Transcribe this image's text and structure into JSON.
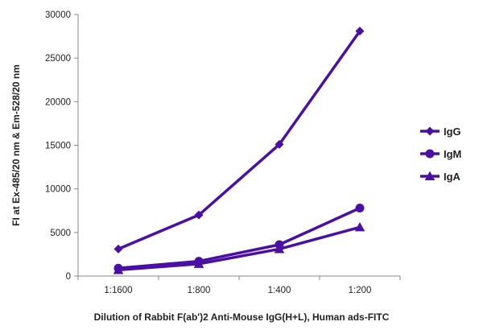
{
  "chart_data": {
    "type": "line",
    "categories": [
      "1:1600",
      "1:800",
      "1:400",
      "1:200"
    ],
    "series": [
      {
        "name": "IgG",
        "marker": "diamond",
        "color": "#4a0fa3",
        "values": [
          3100,
          7000,
          15100,
          28100
        ]
      },
      {
        "name": "IgM",
        "marker": "circle",
        "color": "#4a0fa3",
        "values": [
          900,
          1700,
          3600,
          7800
        ]
      },
      {
        "name": "IgA",
        "marker": "triangle",
        "color": "#4a0fa3",
        "values": [
          700,
          1400,
          3100,
          5600
        ]
      }
    ],
    "xlabel": "Dilution of Rabbit F(ab')2 Anti-Mouse IgG(H+L), Human ads-FITC",
    "ylabel": "FI at Ex-485/20 nm & Em-528/20 nm",
    "ylim": [
      0,
      30000
    ],
    "yticks": [
      0,
      5000,
      10000,
      15000,
      20000,
      25000,
      30000
    ],
    "grid": false,
    "legend_position": "right"
  }
}
